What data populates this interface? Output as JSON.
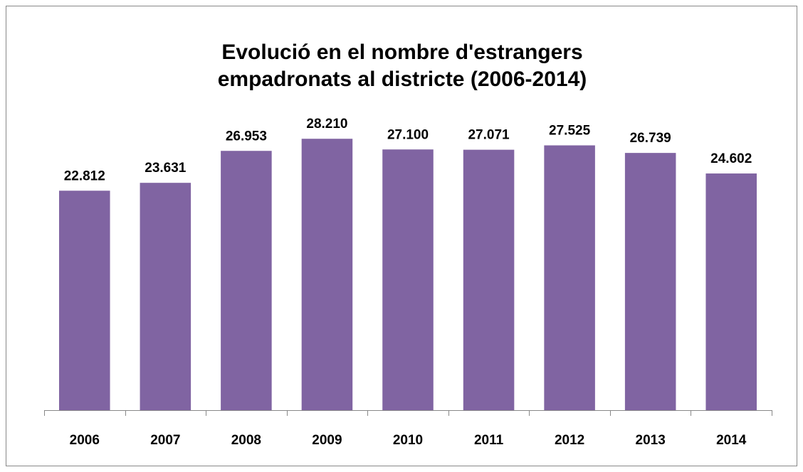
{
  "chart_data": {
    "type": "bar",
    "title": [
      "Evolució en el nombre d'estrangers",
      "empadronats al districte (2006-2014)"
    ],
    "categories": [
      "2006",
      "2007",
      "2008",
      "2009",
      "2010",
      "2011",
      "2012",
      "2013",
      "2014"
    ],
    "values": [
      22812,
      23631,
      26953,
      28210,
      27100,
      27071,
      27525,
      26739,
      24602
    ],
    "value_labels": [
      "22.812",
      "23.631",
      "26.953",
      "28.210",
      "27.100",
      "27.071",
      "27.525",
      "26.739",
      "24.602"
    ],
    "color": "#8064a2",
    "ylim": [
      0,
      30000
    ]
  }
}
